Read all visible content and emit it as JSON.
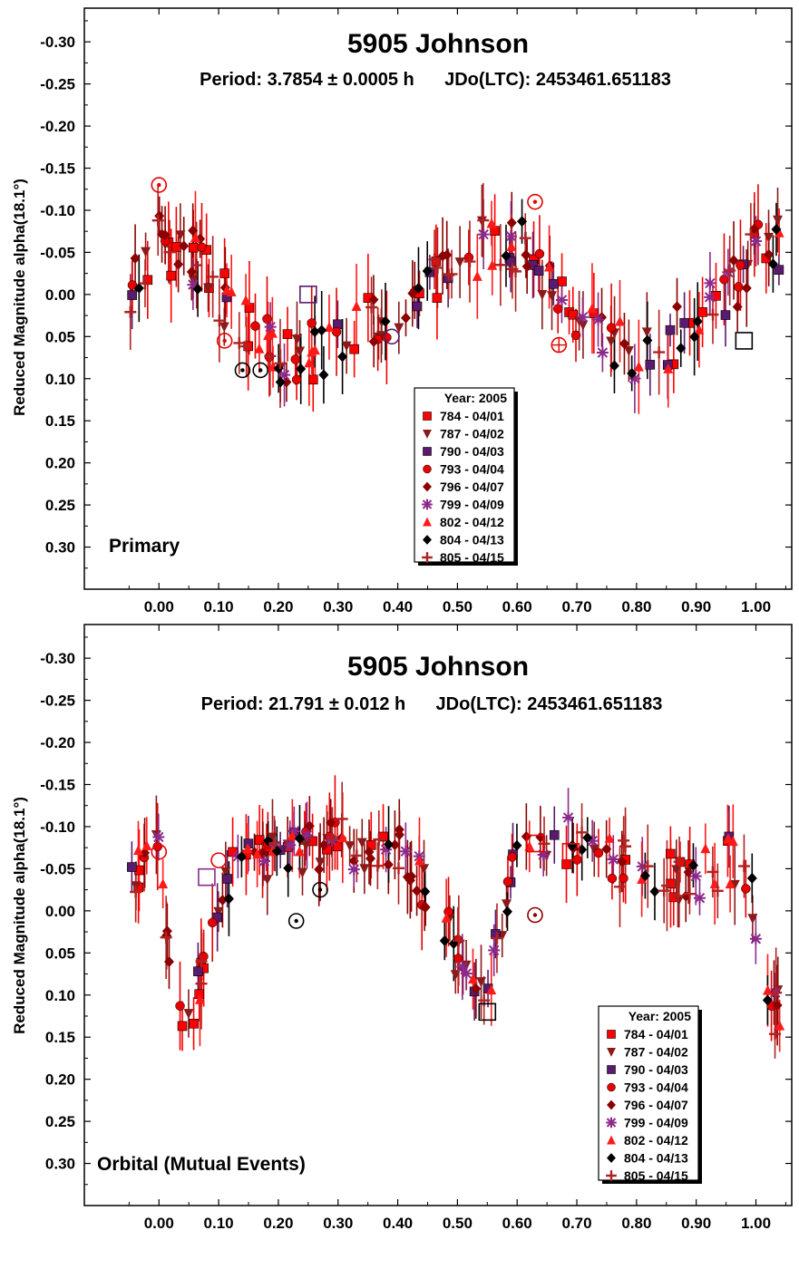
{
  "chart_data": [
    {
      "type": "scatter",
      "title": "5905 Johnson",
      "subtitle": "Period: 3.7854 ± 0.0005 h      JDo(LTC): 2453461.651183",
      "panel_label": "Primary",
      "ylabel": "Reduced Magnitude alpha(18.1°)",
      "xlabel": "",
      "xlim": [
        -0.125,
        1.06
      ],
      "ylim": [
        -0.34,
        0.35
      ],
      "y_inverted": true,
      "grid": false,
      "xticks": [
        "0.00",
        "0.10",
        "0.20",
        "0.30",
        "0.40",
        "0.50",
        "0.60",
        "0.70",
        "0.80",
        "0.90",
        "1.00"
      ],
      "yticks": [
        "-0.30",
        "-0.25",
        "-0.20",
        "-0.15",
        "-0.10",
        "-0.05",
        "0.00",
        "0.05",
        "0.10",
        "0.15",
        "0.20",
        "0.25",
        "0.30"
      ],
      "legend": {
        "title": "Year: 2005",
        "placement": "bottom-center",
        "entries": [
          "784 - 04/01",
          "787 - 04/02",
          "790 - 04/03",
          "793 - 04/04",
          "796 - 04/07",
          "799 - 04/09",
          "802 - 04/12",
          "804 - 04/13",
          "805 - 04/15"
        ]
      },
      "curve": {
        "x": [
          -0.05,
          0.0,
          0.05,
          0.1,
          0.15,
          0.2,
          0.25,
          0.3,
          0.35,
          0.4,
          0.45,
          0.5,
          0.55,
          0.6,
          0.65,
          0.7,
          0.75,
          0.8,
          0.85,
          0.9,
          0.95,
          1.0,
          1.04
        ],
        "y": [
          0.0,
          -0.06,
          -0.05,
          0.0,
          0.04,
          0.07,
          0.07,
          0.06,
          0.03,
          0.01,
          0.0,
          -0.03,
          -0.06,
          -0.06,
          -0.03,
          0.02,
          0.06,
          0.07,
          0.06,
          0.03,
          0.0,
          -0.05,
          -0.06
        ]
      },
      "scatter": 0.035,
      "series": [
        {
          "name": "784 - 04/01",
          "marker": "square",
          "color": "#ff0000",
          "n": 28,
          "error": 0.04
        },
        {
          "name": "787 - 04/02",
          "marker": "triangle-down",
          "color": "#8b1a1a",
          "n": 26,
          "error": 0.035
        },
        {
          "name": "790 - 04/03",
          "marker": "square",
          "color": "#5a1a6e",
          "n": 18,
          "error": 0.03
        },
        {
          "name": "793 - 04/04",
          "marker": "circle",
          "color": "#e60000",
          "n": 22,
          "error": 0.04
        },
        {
          "name": "796 - 04/07",
          "marker": "diamond",
          "color": "#8b0000",
          "n": 30,
          "error": 0.035
        },
        {
          "name": "799 - 04/09",
          "marker": "star",
          "color": "#8b2a8b",
          "n": 14,
          "error": 0.03
        },
        {
          "name": "802 - 04/12",
          "marker": "triangle-up",
          "color": "#ff1a1a",
          "n": 24,
          "error": 0.04
        },
        {
          "name": "804 - 04/13",
          "marker": "diamond",
          "color": "#000000",
          "n": 22,
          "error": 0.035
        },
        {
          "name": "805 - 04/15",
          "marker": "plus",
          "color": "#b22222",
          "n": 26,
          "error": 0.04
        }
      ],
      "open_markers": [
        {
          "x": 0.0,
          "y": -0.13,
          "shape": "circle-dot",
          "color": "#e60000"
        },
        {
          "x": 0.11,
          "y": 0.055,
          "shape": "circle-dot",
          "color": "#e60000"
        },
        {
          "x": 0.14,
          "y": 0.09,
          "shape": "circle-dot",
          "color": "#000000"
        },
        {
          "x": 0.17,
          "y": 0.09,
          "shape": "circle-dot",
          "color": "#000000"
        },
        {
          "x": 0.25,
          "y": 0.0,
          "shape": "square",
          "color": "#5a1a6e"
        },
        {
          "x": 0.39,
          "y": 0.05,
          "shape": "circle",
          "color": "#5a1a6e"
        },
        {
          "x": 0.63,
          "y": -0.11,
          "shape": "circle-dot",
          "color": "#e60000"
        },
        {
          "x": 0.67,
          "y": 0.06,
          "shape": "circle-plus",
          "color": "#e60000"
        },
        {
          "x": 0.98,
          "y": 0.055,
          "shape": "square",
          "color": "#000000"
        }
      ]
    },
    {
      "type": "scatter",
      "title": "5905 Johnson",
      "subtitle": "Period: 21.791 ± 0.012 h      JDo(LTC): 2453461.651183",
      "panel_label": "Orbital (Mutual Events)",
      "ylabel": "Reduced Magnitude alpha(18.1°)",
      "xlabel": "",
      "xlim": [
        -0.125,
        1.06
      ],
      "ylim": [
        -0.34,
        0.35
      ],
      "y_inverted": true,
      "grid": false,
      "xticks": [
        "0.00",
        "0.10",
        "0.20",
        "0.30",
        "0.40",
        "0.50",
        "0.60",
        "0.70",
        "0.80",
        "0.90",
        "1.00"
      ],
      "yticks": [
        "-0.30",
        "-0.25",
        "-0.20",
        "-0.15",
        "-0.10",
        "-0.05",
        "0.00",
        "0.05",
        "0.10",
        "0.15",
        "0.20",
        "0.25",
        "0.30"
      ],
      "legend": {
        "title": "Year: 2005",
        "placement": "bottom-right",
        "entries": [
          "784 - 04/01",
          "787 - 04/02",
          "790 - 04/03",
          "793 - 04/04",
          "796 - 04/07",
          "799 - 04/09",
          "802 - 04/12",
          "804 - 04/13",
          "805 - 04/15"
        ]
      },
      "curve": {
        "x": [
          -0.05,
          -0.02,
          0.0,
          0.02,
          0.04,
          0.06,
          0.08,
          0.12,
          0.2,
          0.3,
          0.4,
          0.46,
          0.5,
          0.53,
          0.55,
          0.57,
          0.6,
          0.65,
          0.7,
          0.8,
          0.9,
          0.96,
          0.99,
          1.01,
          1.03
        ],
        "y": [
          -0.02,
          -0.09,
          -0.07,
          0.05,
          0.11,
          0.12,
          0.04,
          -0.04,
          -0.07,
          -0.08,
          -0.07,
          -0.02,
          0.06,
          0.11,
          0.1,
          0.03,
          -0.06,
          -0.09,
          -0.08,
          -0.05,
          -0.04,
          -0.06,
          -0.03,
          0.08,
          0.12
        ]
      },
      "scatter": 0.03,
      "series": [
        {
          "name": "784 - 04/01",
          "marker": "square",
          "color": "#ff0000",
          "n": 26,
          "error": 0.04
        },
        {
          "name": "787 - 04/02",
          "marker": "triangle-down",
          "color": "#8b1a1a",
          "n": 30,
          "error": 0.035
        },
        {
          "name": "790 - 04/03",
          "marker": "square",
          "color": "#5a1a6e",
          "n": 14,
          "error": 0.03
        },
        {
          "name": "793 - 04/04",
          "marker": "circle",
          "color": "#e60000",
          "n": 22,
          "error": 0.04
        },
        {
          "name": "796 - 04/07",
          "marker": "diamond",
          "color": "#8b0000",
          "n": 36,
          "error": 0.035
        },
        {
          "name": "799 - 04/09",
          "marker": "star",
          "color": "#8b2a8b",
          "n": 24,
          "error": 0.03
        },
        {
          "name": "802 - 04/12",
          "marker": "triangle-up",
          "color": "#ff1a1a",
          "n": 24,
          "error": 0.04
        },
        {
          "name": "804 - 04/13",
          "marker": "diamond",
          "color": "#000000",
          "n": 20,
          "error": 0.035
        },
        {
          "name": "805 - 04/15",
          "marker": "plus",
          "color": "#b22222",
          "n": 30,
          "error": 0.04
        }
      ],
      "open_markers": [
        {
          "x": 0.0,
          "y": -0.07,
          "shape": "circle",
          "color": "#e60000"
        },
        {
          "x": 0.08,
          "y": -0.04,
          "shape": "square",
          "color": "#8b2a8b"
        },
        {
          "x": 0.1,
          "y": -0.06,
          "shape": "circle",
          "color": "#e60000"
        },
        {
          "x": 0.23,
          "y": 0.012,
          "shape": "circle-dot",
          "color": "#000000"
        },
        {
          "x": 0.27,
          "y": -0.025,
          "shape": "circle-dot",
          "color": "#000000"
        },
        {
          "x": 0.55,
          "y": 0.12,
          "shape": "square",
          "color": "#000000"
        },
        {
          "x": 0.63,
          "y": 0.005,
          "shape": "circle-dot",
          "color": "#8b0000"
        },
        {
          "x": 0.63,
          "y": -0.08,
          "shape": "square",
          "color": "#e60000"
        },
        {
          "x": 0.69,
          "y": -0.07,
          "shape": "square",
          "color": "#e60000"
        }
      ]
    }
  ]
}
